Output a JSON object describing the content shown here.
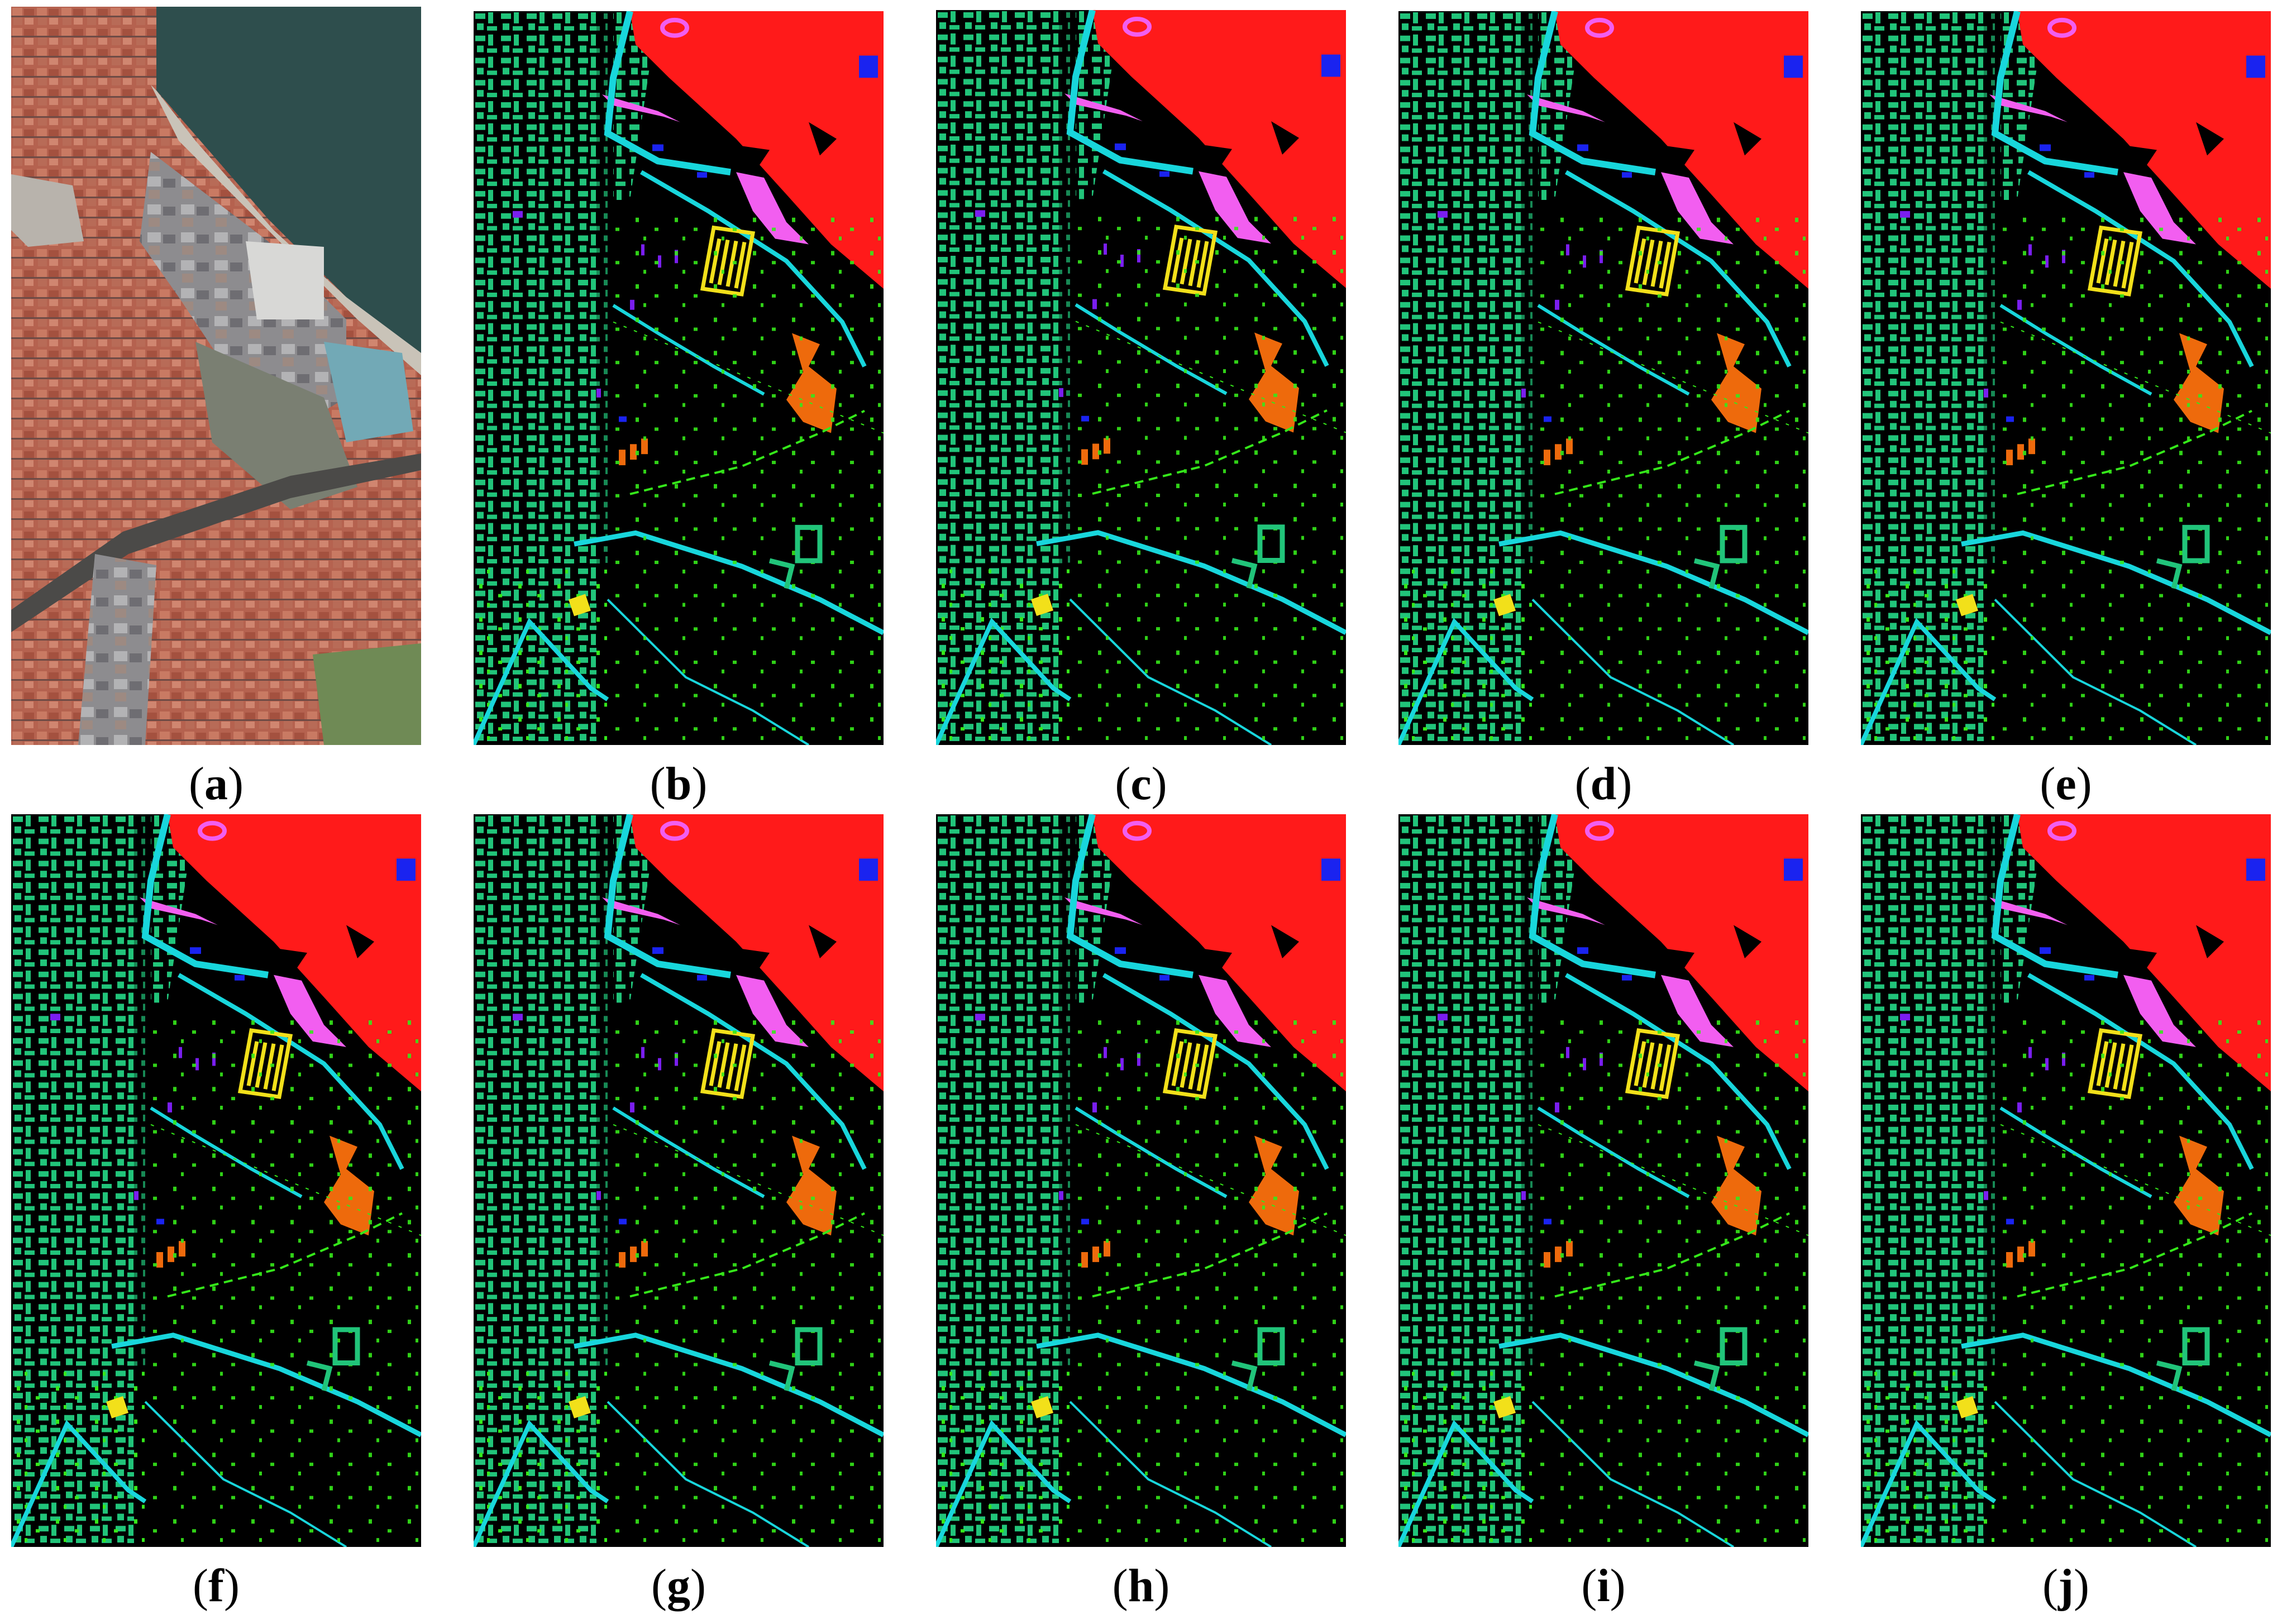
{
  "figure": {
    "panels": [
      {
        "id": "a",
        "caption": "a",
        "kind": "true-color-image",
        "description": "aerial urban scene"
      },
      {
        "id": "b",
        "caption": "b",
        "kind": "classification-map"
      },
      {
        "id": "c",
        "caption": "c",
        "kind": "classification-map"
      },
      {
        "id": "d",
        "caption": "d",
        "kind": "classification-map"
      },
      {
        "id": "e",
        "caption": "e",
        "kind": "classification-map"
      },
      {
        "id": "f",
        "caption": "f",
        "kind": "classification-map"
      },
      {
        "id": "g",
        "caption": "g",
        "kind": "classification-map"
      },
      {
        "id": "h",
        "caption": "h",
        "kind": "classification-map"
      },
      {
        "id": "i",
        "caption": "i",
        "kind": "classification-map"
      },
      {
        "id": "j",
        "caption": "j",
        "kind": "classification-map"
      }
    ],
    "class_colors": {
      "water": "#ff1a1a",
      "buildings": "#21c47a",
      "roads": "#18d6dc",
      "vegetation": "#35e81a",
      "bare_soil": "#ee6a0c",
      "asphalt": "#f2e01a",
      "shadows": "#7a1ef0",
      "tiles": "#f25ef0",
      "meadows": "#1a23f0",
      "background": "#000000"
    }
  }
}
